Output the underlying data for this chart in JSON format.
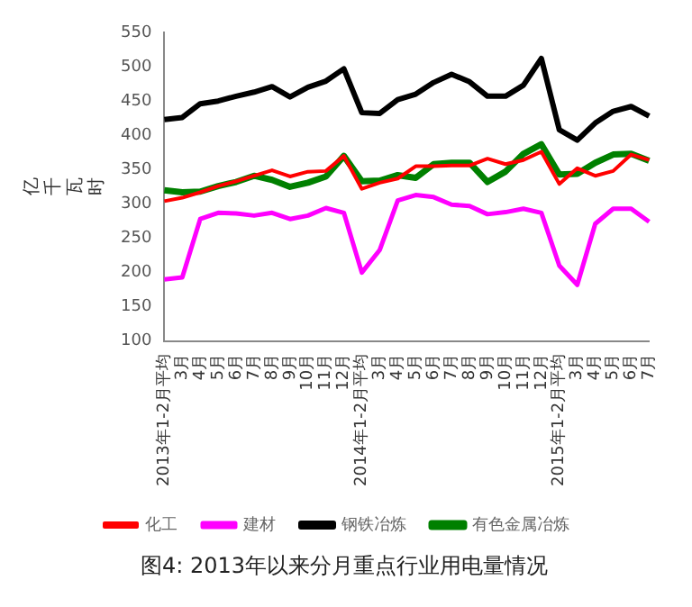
{
  "chart_data": {
    "type": "line",
    "title": "图4: 2013年以来分月重点行业用电量情况",
    "ylabel": "亿千瓦时",
    "categories": [
      "2013年1-2月平均",
      "3月",
      "4月",
      "5月",
      "6月",
      "7月",
      "8月",
      "9月",
      "10月",
      "11月",
      "12月",
      "2014年1-2月平均",
      "3月",
      "4月",
      "5月",
      "6月",
      "7月",
      "8月",
      "9月",
      "10月",
      "11月",
      "12月",
      "2015年1-2月平均",
      "3月",
      "4月",
      "5月",
      "6月",
      "7月"
    ],
    "series": [
      {
        "name": "化工",
        "color": "#ff0000",
        "values": [
          304,
          309,
          317,
          326,
          333,
          341,
          349,
          340,
          347,
          348,
          370,
          322,
          331,
          337,
          355,
          355,
          356,
          356,
          366,
          358,
          364,
          376,
          329,
          352,
          341,
          348,
          372,
          364
        ]
      },
      {
        "name": "建材",
        "color": "#ff00ff",
        "values": [
          190,
          193,
          278,
          287,
          286,
          283,
          287,
          278,
          283,
          294,
          287,
          200,
          233,
          305,
          313,
          310,
          299,
          297,
          285,
          288,
          293,
          287,
          210,
          182,
          271,
          293,
          293,
          274
        ]
      },
      {
        "name": "钢铁冶炼",
        "color": "#000000",
        "values": [
          423,
          426,
          446,
          450,
          457,
          463,
          471,
          456,
          470,
          479,
          497,
          433,
          432,
          452,
          460,
          477,
          489,
          478,
          457,
          457,
          473,
          512,
          408,
          393,
          418,
          435,
          442,
          428
        ]
      },
      {
        "name": "有色金属冶炼",
        "color": "#008000",
        "values": [
          320,
          317,
          318,
          326,
          332,
          341,
          335,
          325,
          331,
          340,
          370,
          333,
          334,
          342,
          338,
          358,
          360,
          360,
          332,
          347,
          373,
          387,
          343,
          344,
          360,
          372,
          373,
          363
        ]
      }
    ],
    "ylim": [
      100,
      550
    ],
    "yticks": [
      100,
      150,
      200,
      250,
      300,
      350,
      400,
      450,
      500,
      550
    ],
    "grid": false,
    "legend": "bottom",
    "marker": "none",
    "line_style": "solid"
  }
}
